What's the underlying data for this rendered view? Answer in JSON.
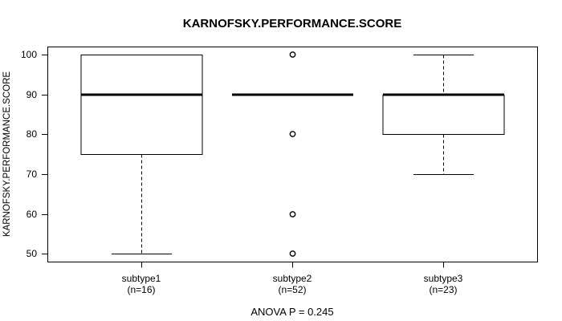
{
  "chart_data": {
    "type": "boxplot",
    "title": "KARNOFSKY.PERFORMANCE.SCORE",
    "ylabel": "KARNOFSKY.PERFORMANCE.SCORE",
    "xlabel": "",
    "annotation": "ANOVA P = 0.245",
    "ylim": [
      48.0,
      102.1
    ],
    "yticks": [
      50,
      60,
      70,
      80,
      90,
      100
    ],
    "xlim": [
      0.38,
      3.62
    ],
    "grid": false,
    "legend": "none",
    "colors": {
      "line": "#000000",
      "fill": "#ffffff",
      "background": "#ffffff"
    },
    "groups": [
      {
        "position": 1,
        "label": "subtype1",
        "sublabel": "(n=16)",
        "n": 16,
        "whisker_low": 50,
        "q1": 75,
        "median": 90,
        "q3": 100,
        "whisker_high": 100,
        "outliers": []
      },
      {
        "position": 2,
        "label": "subtype2",
        "sublabel": "(n=52)",
        "n": 52,
        "whisker_low": 90,
        "q1": 90,
        "median": 90,
        "q3": 90,
        "whisker_high": 90,
        "outliers": [
          100,
          80,
          60,
          50
        ]
      },
      {
        "position": 3,
        "label": "subtype3",
        "sublabel": "(n=23)",
        "n": 23,
        "whisker_low": 70,
        "q1": 80,
        "median": 90,
        "q3": 90,
        "whisker_high": 100,
        "outliers": []
      }
    ]
  }
}
